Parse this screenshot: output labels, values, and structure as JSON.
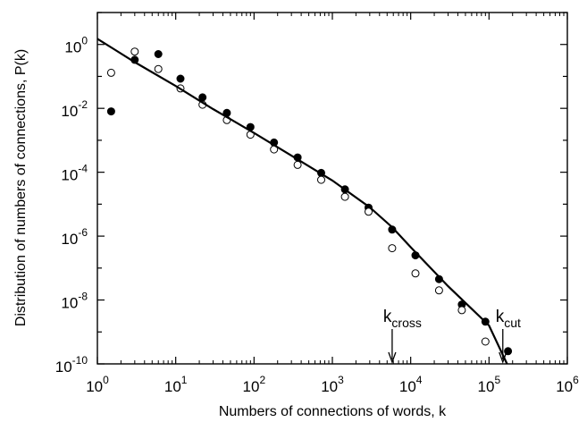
{
  "chart_data": {
    "type": "scatter",
    "xlabel": "Numbers of connections of words, k",
    "ylabel": "Distribution of numbers of connections, P(k)",
    "x_scale": "log",
    "y_scale": "log",
    "xlim": [
      1,
      1000000
    ],
    "ylim": [
      1e-10,
      10
    ],
    "x_ticks": [
      {
        "value": 1,
        "base": "10",
        "exp": "0"
      },
      {
        "value": 10,
        "base": "10",
        "exp": "1"
      },
      {
        "value": 100,
        "base": "10",
        "exp": "2"
      },
      {
        "value": 1000,
        "base": "10",
        "exp": "3"
      },
      {
        "value": 10000,
        "base": "10",
        "exp": "4"
      },
      {
        "value": 100000,
        "base": "10",
        "exp": "5"
      },
      {
        "value": 1000000,
        "base": "10",
        "exp": "6"
      }
    ],
    "y_ticks": [
      {
        "value": 1,
        "base": "10",
        "exp": "0"
      },
      {
        "value": 0.01,
        "base": "10",
        "exp": "-2"
      },
      {
        "value": 0.0001,
        "base": "10",
        "exp": "-4"
      },
      {
        "value": 1e-06,
        "base": "10",
        "exp": "-6"
      },
      {
        "value": 1e-08,
        "base": "10",
        "exp": "-8"
      },
      {
        "value": 1e-10,
        "base": "10",
        "exp": "-10"
      }
    ],
    "series": [
      {
        "marker": "filled-circle",
        "points": [
          [
            1.5,
            0.008
          ],
          [
            3,
            0.33
          ],
          [
            6,
            0.5
          ],
          [
            11.5,
            0.085
          ],
          [
            22,
            0.022
          ],
          [
            45,
            0.0072
          ],
          [
            90,
            0.0026
          ],
          [
            180,
            0.00085
          ],
          [
            360,
            0.00029
          ],
          [
            720,
            9.5e-05
          ],
          [
            1450,
            2.9e-05
          ],
          [
            2900,
            7.8e-06
          ],
          [
            5800,
            1.6e-06
          ],
          [
            11500,
            2.5e-07
          ],
          [
            23000,
            4.5e-08
          ],
          [
            45000,
            7.2e-09
          ],
          [
            90000,
            2.1e-09
          ],
          [
            175000,
            2.5e-10
          ]
        ]
      },
      {
        "marker": "open-circle",
        "points": [
          [
            1.5,
            0.13
          ],
          [
            3,
            0.6
          ],
          [
            6,
            0.17
          ],
          [
            11.5,
            0.042
          ],
          [
            22,
            0.013
          ],
          [
            45,
            0.0043
          ],
          [
            90,
            0.0015
          ],
          [
            180,
            0.00052
          ],
          [
            360,
            0.00017
          ],
          [
            720,
            5.8e-05
          ],
          [
            1450,
            1.7e-05
          ],
          [
            2900,
            5.8e-06
          ],
          [
            5800,
            4.2e-07
          ],
          [
            11500,
            6.8e-08
          ],
          [
            23000,
            2e-08
          ],
          [
            45000,
            4.8e-09
          ],
          [
            90000,
            5e-10
          ]
        ]
      },
      {
        "marker": "line",
        "points": [
          [
            1,
            1.5
          ],
          [
            3,
            0.28
          ],
          [
            10,
            0.05
          ],
          [
            30,
            0.0095
          ],
          [
            100,
            0.0017
          ],
          [
            300,
            0.00033
          ],
          [
            1000,
            5.5e-05
          ],
          [
            3000,
            8e-06
          ],
          [
            5800,
            1.9e-06
          ],
          [
            10000,
            4.5e-07
          ],
          [
            30000,
            2.7e-08
          ],
          [
            100000,
            1.6e-09
          ],
          [
            170000,
            1e-10
          ]
        ]
      }
    ],
    "annotations": [
      {
        "base": "k",
        "sub": "cross",
        "x": 5800
      },
      {
        "base": "k",
        "sub": "cut",
        "x": 150000
      }
    ]
  }
}
